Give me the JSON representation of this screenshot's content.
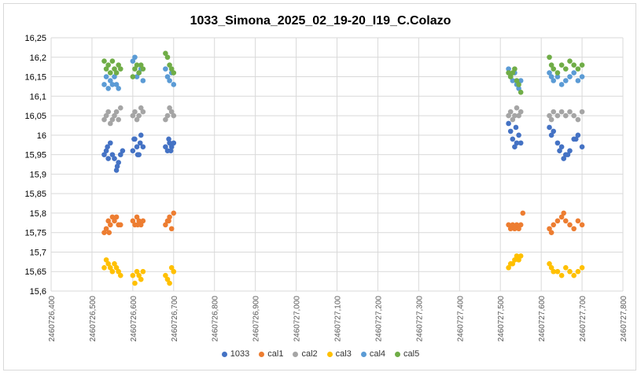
{
  "chart_data": {
    "type": "scatter",
    "title": "1033_Simona_2025_02_19-20_I19_C.Colazo",
    "xlabel": "",
    "ylabel": "",
    "xlim": [
      2460726.4,
      2460727.8
    ],
    "ylim": [
      15.6,
      16.25
    ],
    "x_ticks": [
      "2460726,400",
      "2460726,500",
      "2460726,600",
      "2460726,700",
      "2460726,800",
      "2460726,900",
      "2460727,000",
      "2460727,100",
      "2460727,200",
      "2460727,300",
      "2460727,400",
      "2460727,500",
      "2460727,600",
      "2460727,700",
      "2460727,800"
    ],
    "y_ticks": [
      "15,6",
      "15,65",
      "15,7",
      "15,75",
      "15,8",
      "15,85",
      "15,9",
      "15,95",
      "16",
      "16,05",
      "16,1",
      "16,15",
      "16,2",
      "16,25"
    ],
    "grid": true,
    "legend_position": "bottom",
    "series": [
      {
        "name": "1033",
        "color": "#4472c4",
        "points": [
          [
            2460726.53,
            15.95
          ],
          [
            2460726.535,
            15.96
          ],
          [
            2460726.54,
            15.94
          ],
          [
            2460726.545,
            15.98
          ],
          [
            2460726.55,
            15.95
          ],
          [
            2460726.555,
            15.94
          ],
          [
            2460726.56,
            15.91
          ],
          [
            2460726.565,
            15.93
          ],
          [
            2460726.57,
            15.95
          ],
          [
            2460726.575,
            15.96
          ],
          [
            2460726.538,
            15.97
          ],
          [
            2460726.562,
            15.92
          ],
          [
            2460726.6,
            15.96
          ],
          [
            2460726.605,
            15.99
          ],
          [
            2460726.61,
            15.97
          ],
          [
            2460726.615,
            15.95
          ],
          [
            2460726.62,
            16.0
          ],
          [
            2460726.625,
            15.97
          ],
          [
            2460726.603,
            15.99
          ],
          [
            2460726.612,
            15.95
          ],
          [
            2460726.618,
            15.98
          ],
          [
            2460726.68,
            15.97
          ],
          [
            2460726.685,
            15.96
          ],
          [
            2460726.69,
            15.98
          ],
          [
            2460726.695,
            15.97
          ],
          [
            2460726.7,
            15.98
          ],
          [
            2460726.688,
            15.99
          ],
          [
            2460726.693,
            15.96
          ],
          [
            2460727.52,
            16.03
          ],
          [
            2460727.525,
            16.01
          ],
          [
            2460727.53,
            15.99
          ],
          [
            2460727.535,
            15.97
          ],
          [
            2460727.54,
            15.98
          ],
          [
            2460727.545,
            16.0
          ],
          [
            2460727.55,
            15.98
          ],
          [
            2460727.538,
            16.02
          ],
          [
            2460727.62,
            16.02
          ],
          [
            2460727.625,
            16.0
          ],
          [
            2460727.63,
            16.01
          ],
          [
            2460727.64,
            15.98
          ],
          [
            2460727.65,
            15.97
          ],
          [
            2460727.655,
            15.94
          ],
          [
            2460727.66,
            15.95
          ],
          [
            2460727.67,
            15.96
          ],
          [
            2460727.68,
            15.99
          ],
          [
            2460727.69,
            16.0
          ],
          [
            2460727.7,
            15.97
          ],
          [
            2460727.645,
            15.96
          ],
          [
            2460727.665,
            15.95
          ],
          [
            2460727.685,
            15.99
          ]
        ]
      },
      {
        "name": "cal1",
        "color": "#ed7d31",
        "points": [
          [
            2460726.53,
            15.75
          ],
          [
            2460726.535,
            15.76
          ],
          [
            2460726.54,
            15.78
          ],
          [
            2460726.545,
            15.77
          ],
          [
            2460726.55,
            15.79
          ],
          [
            2460726.555,
            15.78
          ],
          [
            2460726.56,
            15.79
          ],
          [
            2460726.565,
            15.77
          ],
          [
            2460726.57,
            15.77
          ],
          [
            2460726.542,
            15.75
          ],
          [
            2460726.6,
            15.78
          ],
          [
            2460726.605,
            15.77
          ],
          [
            2460726.61,
            15.79
          ],
          [
            2460726.615,
            15.78
          ],
          [
            2460726.62,
            15.77
          ],
          [
            2460726.625,
            15.78
          ],
          [
            2460726.612,
            15.77
          ],
          [
            2460726.68,
            15.77
          ],
          [
            2460726.685,
            15.78
          ],
          [
            2460726.69,
            15.79
          ],
          [
            2460726.695,
            15.76
          ],
          [
            2460726.7,
            15.8
          ],
          [
            2460726.688,
            15.78
          ],
          [
            2460727.52,
            15.77
          ],
          [
            2460727.525,
            15.76
          ],
          [
            2460727.53,
            15.77
          ],
          [
            2460727.535,
            15.76
          ],
          [
            2460727.54,
            15.77
          ],
          [
            2460727.545,
            15.76
          ],
          [
            2460727.55,
            15.77
          ],
          [
            2460727.555,
            15.8
          ],
          [
            2460727.62,
            15.76
          ],
          [
            2460727.625,
            15.75
          ],
          [
            2460727.63,
            15.77
          ],
          [
            2460727.64,
            15.78
          ],
          [
            2460727.65,
            15.79
          ],
          [
            2460727.655,
            15.8
          ],
          [
            2460727.66,
            15.78
          ],
          [
            2460727.67,
            15.77
          ],
          [
            2460727.68,
            15.76
          ],
          [
            2460727.69,
            15.78
          ],
          [
            2460727.7,
            15.77
          ]
        ]
      },
      {
        "name": "cal2",
        "color": "#a5a5a5",
        "points": [
          [
            2460726.53,
            16.04
          ],
          [
            2460726.535,
            16.05
          ],
          [
            2460726.54,
            16.06
          ],
          [
            2460726.545,
            16.03
          ],
          [
            2460726.55,
            16.04
          ],
          [
            2460726.555,
            16.05
          ],
          [
            2460726.56,
            16.06
          ],
          [
            2460726.565,
            16.04
          ],
          [
            2460726.57,
            16.07
          ],
          [
            2460726.6,
            16.05
          ],
          [
            2460726.605,
            16.06
          ],
          [
            2460726.61,
            16.04
          ],
          [
            2460726.615,
            16.05
          ],
          [
            2460726.62,
            16.07
          ],
          [
            2460726.625,
            16.06
          ],
          [
            2460726.68,
            16.04
          ],
          [
            2460726.685,
            16.05
          ],
          [
            2460726.69,
            16.07
          ],
          [
            2460726.695,
            16.06
          ],
          [
            2460726.7,
            16.05
          ],
          [
            2460727.52,
            16.05
          ],
          [
            2460727.525,
            16.06
          ],
          [
            2460727.53,
            16.04
          ],
          [
            2460727.535,
            16.05
          ],
          [
            2460727.54,
            16.07
          ],
          [
            2460727.545,
            16.05
          ],
          [
            2460727.55,
            16.06
          ],
          [
            2460727.62,
            16.05
          ],
          [
            2460727.625,
            16.04
          ],
          [
            2460727.63,
            16.06
          ],
          [
            2460727.64,
            16.05
          ],
          [
            2460727.65,
            16.06
          ],
          [
            2460727.66,
            16.05
          ],
          [
            2460727.67,
            16.06
          ],
          [
            2460727.68,
            16.05
          ],
          [
            2460727.69,
            16.04
          ],
          [
            2460727.7,
            16.06
          ]
        ]
      },
      {
        "name": "cal3",
        "color": "#ffc000",
        "points": [
          [
            2460726.53,
            15.66
          ],
          [
            2460726.535,
            15.68
          ],
          [
            2460726.54,
            15.67
          ],
          [
            2460726.545,
            15.66
          ],
          [
            2460726.55,
            15.65
          ],
          [
            2460726.555,
            15.67
          ],
          [
            2460726.56,
            15.66
          ],
          [
            2460726.565,
            15.65
          ],
          [
            2460726.57,
            15.64
          ],
          [
            2460726.6,
            15.64
          ],
          [
            2460726.605,
            15.62
          ],
          [
            2460726.61,
            15.65
          ],
          [
            2460726.615,
            15.64
          ],
          [
            2460726.62,
            15.63
          ],
          [
            2460726.625,
            15.65
          ],
          [
            2460726.68,
            15.64
          ],
          [
            2460726.685,
            15.63
          ],
          [
            2460726.69,
            15.62
          ],
          [
            2460726.695,
            15.66
          ],
          [
            2460726.7,
            15.65
          ],
          [
            2460727.52,
            15.66
          ],
          [
            2460727.525,
            15.67
          ],
          [
            2460727.53,
            15.67
          ],
          [
            2460727.535,
            15.68
          ],
          [
            2460727.54,
            15.69
          ],
          [
            2460727.545,
            15.68
          ],
          [
            2460727.55,
            15.69
          ],
          [
            2460727.62,
            15.67
          ],
          [
            2460727.625,
            15.66
          ],
          [
            2460727.63,
            15.65
          ],
          [
            2460727.64,
            15.65
          ],
          [
            2460727.65,
            15.64
          ],
          [
            2460727.66,
            15.66
          ],
          [
            2460727.67,
            15.65
          ],
          [
            2460727.68,
            15.64
          ],
          [
            2460727.69,
            15.65
          ],
          [
            2460727.7,
            15.66
          ]
        ]
      },
      {
        "name": "cal4",
        "color": "#5b9bd5",
        "points": [
          [
            2460726.53,
            16.13
          ],
          [
            2460726.535,
            16.15
          ],
          [
            2460726.54,
            16.12
          ],
          [
            2460726.545,
            16.14
          ],
          [
            2460726.55,
            16.13
          ],
          [
            2460726.555,
            16.15
          ],
          [
            2460726.56,
            16.13
          ],
          [
            2460726.565,
            16.12
          ],
          [
            2460726.6,
            16.19
          ],
          [
            2460726.605,
            16.2
          ],
          [
            2460726.61,
            16.15
          ],
          [
            2460726.615,
            16.16
          ],
          [
            2460726.62,
            16.17
          ],
          [
            2460726.625,
            16.14
          ],
          [
            2460726.68,
            16.17
          ],
          [
            2460726.685,
            16.15
          ],
          [
            2460726.69,
            16.14
          ],
          [
            2460726.695,
            16.16
          ],
          [
            2460726.7,
            16.13
          ],
          [
            2460727.52,
            16.17
          ],
          [
            2460727.525,
            16.15
          ],
          [
            2460727.53,
            16.14
          ],
          [
            2460727.535,
            16.16
          ],
          [
            2460727.54,
            16.13
          ],
          [
            2460727.545,
            16.12
          ],
          [
            2460727.55,
            16.14
          ],
          [
            2460727.62,
            16.16
          ],
          [
            2460727.625,
            16.15
          ],
          [
            2460727.63,
            16.14
          ],
          [
            2460727.64,
            16.15
          ],
          [
            2460727.65,
            16.13
          ],
          [
            2460727.66,
            16.14
          ],
          [
            2460727.67,
            16.15
          ],
          [
            2460727.68,
            16.16
          ],
          [
            2460727.69,
            16.14
          ],
          [
            2460727.7,
            16.15
          ]
        ]
      },
      {
        "name": "cal5",
        "color": "#70ad47",
        "points": [
          [
            2460726.53,
            16.19
          ],
          [
            2460726.535,
            16.17
          ],
          [
            2460726.54,
            16.18
          ],
          [
            2460726.545,
            16.16
          ],
          [
            2460726.55,
            16.19
          ],
          [
            2460726.555,
            16.17
          ],
          [
            2460726.56,
            16.16
          ],
          [
            2460726.565,
            16.18
          ],
          [
            2460726.57,
            16.17
          ],
          [
            2460726.6,
            16.15
          ],
          [
            2460726.605,
            16.17
          ],
          [
            2460726.61,
            16.18
          ],
          [
            2460726.615,
            16.16
          ],
          [
            2460726.62,
            16.18
          ],
          [
            2460726.625,
            16.17
          ],
          [
            2460726.68,
            16.21
          ],
          [
            2460726.685,
            16.2
          ],
          [
            2460726.69,
            16.18
          ],
          [
            2460726.695,
            16.17
          ],
          [
            2460726.7,
            16.16
          ],
          [
            2460727.52,
            16.16
          ],
          [
            2460727.525,
            16.15
          ],
          [
            2460727.53,
            16.16
          ],
          [
            2460727.535,
            16.17
          ],
          [
            2460727.54,
            16.14
          ],
          [
            2460727.545,
            16.13
          ],
          [
            2460727.55,
            16.11
          ],
          [
            2460727.62,
            16.2
          ],
          [
            2460727.625,
            16.18
          ],
          [
            2460727.63,
            16.17
          ],
          [
            2460727.64,
            16.16
          ],
          [
            2460727.65,
            16.18
          ],
          [
            2460727.66,
            16.17
          ],
          [
            2460727.67,
            16.19
          ],
          [
            2460727.68,
            16.18
          ],
          [
            2460727.69,
            16.17
          ],
          [
            2460727.7,
            16.18
          ]
        ]
      }
    ]
  }
}
